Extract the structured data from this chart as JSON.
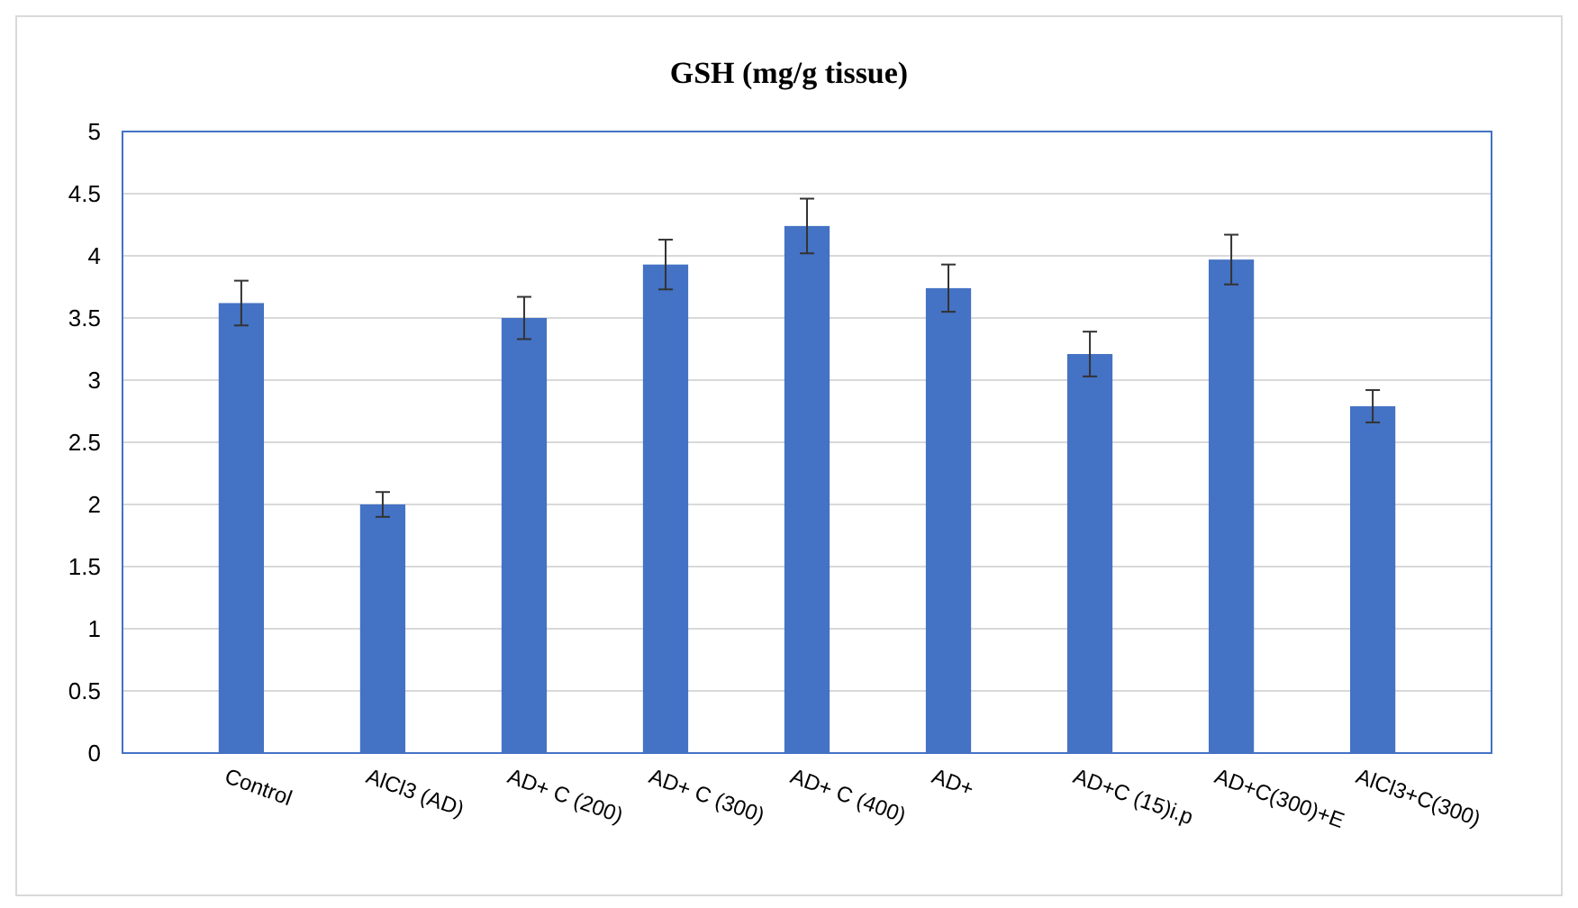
{
  "chart_data": {
    "type": "bar",
    "title": "GSH (mg/g tissue)",
    "categories": [
      "Control",
      "AlCl3 (AD)",
      "AD+ C (200)",
      "AD+ C (300)",
      "AD+ C (400)",
      "AD+",
      "AD+C (15)i.p",
      "AD+C(300)+E",
      "AlCl3+C(300)"
    ],
    "values": [
      3.62,
      2.0,
      3.5,
      3.93,
      4.24,
      3.74,
      3.21,
      3.97,
      2.79
    ],
    "errors": [
      0.18,
      0.1,
      0.17,
      0.2,
      0.22,
      0.19,
      0.18,
      0.2,
      0.13
    ],
    "color": "#4472c4",
    "ylim": [
      0,
      5
    ],
    "yticks": [
      0,
      {
        "value": 0.5,
        "label": "0.5"
      },
      1,
      {
        "value": 1.5,
        "label": "1.5"
      },
      2,
      {
        "value": 2.5,
        "label": "2.5"
      },
      3,
      {
        "value": 3.5,
        "label": "3.5"
      },
      4,
      {
        "value": 4.5,
        "label": "4.5"
      },
      5
    ],
    "grid": "y"
  }
}
